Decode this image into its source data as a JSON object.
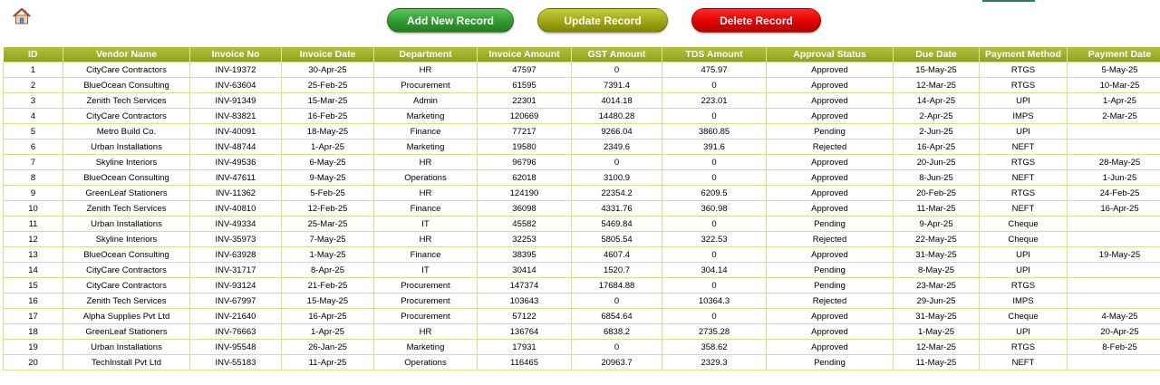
{
  "toolbar": {
    "add_label": "Add New Record",
    "update_label": "Update Record",
    "delete_label": "Delete Record",
    "home_icon": "home-icon"
  },
  "colors": {
    "header_bg": "#9aab24",
    "add_button": "#2f9a2f",
    "update_button": "#9ea614",
    "delete_button": "#e00000",
    "grid_border": "#d6e08f"
  },
  "table": {
    "columns": [
      "ID",
      "Vendor Name",
      "Invoice No",
      "Invoice Date",
      "Department",
      "Invoice Amount",
      "GST Amount",
      "TDS Amount",
      "Approval Status",
      "Due Date",
      "Payment Method",
      "Payment Date"
    ],
    "rows": [
      [
        "1",
        "CityCare Contractors",
        "INV-19372",
        "30-Apr-25",
        "HR",
        "47597",
        "0",
        "475.97",
        "Approved",
        "15-May-25",
        "RTGS",
        "5-May-25"
      ],
      [
        "2",
        "BlueOcean Consulting",
        "INV-63604",
        "25-Feb-25",
        "Procurement",
        "61595",
        "7391.4",
        "0",
        "Approved",
        "12-Mar-25",
        "RTGS",
        "10-Mar-25"
      ],
      [
        "3",
        "Zenith Tech Services",
        "INV-91349",
        "15-Mar-25",
        "Admin",
        "22301",
        "4014.18",
        "223.01",
        "Approved",
        "14-Apr-25",
        "UPI",
        "1-Apr-25"
      ],
      [
        "4",
        "CityCare Contractors",
        "INV-83821",
        "16-Feb-25",
        "Marketing",
        "120669",
        "14480.28",
        "0",
        "Approved",
        "2-Apr-25",
        "IMPS",
        "2-Mar-25"
      ],
      [
        "5",
        "Metro Build Co.",
        "INV-40091",
        "18-May-25",
        "Finance",
        "77217",
        "9266.04",
        "3860.85",
        "Pending",
        "2-Jun-25",
        "UPI",
        ""
      ],
      [
        "6",
        "Urban Installations",
        "INV-48744",
        "1-Apr-25",
        "Marketing",
        "19580",
        "2349.6",
        "391.6",
        "Rejected",
        "16-Apr-25",
        "NEFT",
        ""
      ],
      [
        "7",
        "Skyline Interiors",
        "INV-49536",
        "6-May-25",
        "HR",
        "96796",
        "0",
        "0",
        "Approved",
        "20-Jun-25",
        "RTGS",
        "28-May-25"
      ],
      [
        "8",
        "BlueOcean Consulting",
        "INV-47611",
        "9-May-25",
        "Operations",
        "62018",
        "3100.9",
        "0",
        "Approved",
        "8-Jun-25",
        "NEFT",
        "1-Jun-25"
      ],
      [
        "9",
        "GreenLeaf Stationers",
        "INV-11362",
        "5-Feb-25",
        "HR",
        "124190",
        "22354.2",
        "6209.5",
        "Approved",
        "20-Feb-25",
        "RTGS",
        "24-Feb-25"
      ],
      [
        "10",
        "Zenith Tech Services",
        "INV-40810",
        "12-Feb-25",
        "Finance",
        "36098",
        "4331.76",
        "360.98",
        "Approved",
        "11-Mar-25",
        "NEFT",
        "16-Apr-25"
      ],
      [
        "11",
        "Urban Installations",
        "INV-49334",
        "25-Mar-25",
        "IT",
        "45582",
        "5469.84",
        "0",
        "Pending",
        "9-Apr-25",
        "Cheque",
        ""
      ],
      [
        "12",
        "Skyline Interiors",
        "INV-35973",
        "7-May-25",
        "HR",
        "32253",
        "5805.54",
        "322.53",
        "Rejected",
        "22-May-25",
        "Cheque",
        ""
      ],
      [
        "13",
        "BlueOcean Consulting",
        "INV-63928",
        "1-May-25",
        "Finance",
        "38395",
        "4607.4",
        "0",
        "Approved",
        "31-May-25",
        "UPI",
        "19-May-25"
      ],
      [
        "14",
        "CityCare Contractors",
        "INV-31717",
        "8-Apr-25",
        "IT",
        "30414",
        "1520.7",
        "304.14",
        "Pending",
        "8-May-25",
        "UPI",
        ""
      ],
      [
        "15",
        "CityCare Contractors",
        "INV-93124",
        "21-Feb-25",
        "Procurement",
        "147374",
        "17684.88",
        "0",
        "Pending",
        "23-Mar-25",
        "RTGS",
        ""
      ],
      [
        "16",
        "Zenith Tech Services",
        "INV-67997",
        "15-May-25",
        "Procurement",
        "103643",
        "0",
        "10364.3",
        "Rejected",
        "29-Jun-25",
        "IMPS",
        ""
      ],
      [
        "17",
        "Alpha Supplies Pvt Ltd",
        "INV-21640",
        "16-Apr-25",
        "Procurement",
        "57122",
        "6854.64",
        "0",
        "Approved",
        "31-May-25",
        "Cheque",
        "4-May-25"
      ],
      [
        "18",
        "GreenLeaf Stationers",
        "INV-76663",
        "1-Apr-25",
        "HR",
        "136764",
        "6838.2",
        "2735.28",
        "Approved",
        "1-May-25",
        "UPI",
        "20-Apr-25"
      ],
      [
        "19",
        "Urban Installations",
        "INV-95548",
        "26-Jan-25",
        "Marketing",
        "17931",
        "0",
        "358.62",
        "Approved",
        "12-Mar-25",
        "RTGS",
        "8-Feb-25"
      ],
      [
        "20",
        "TechInstall Pvt Ltd",
        "INV-55183",
        "11-Apr-25",
        "Operations",
        "116465",
        "20963.7",
        "2329.3",
        "Pending",
        "11-May-25",
        "NEFT",
        ""
      ]
    ]
  }
}
